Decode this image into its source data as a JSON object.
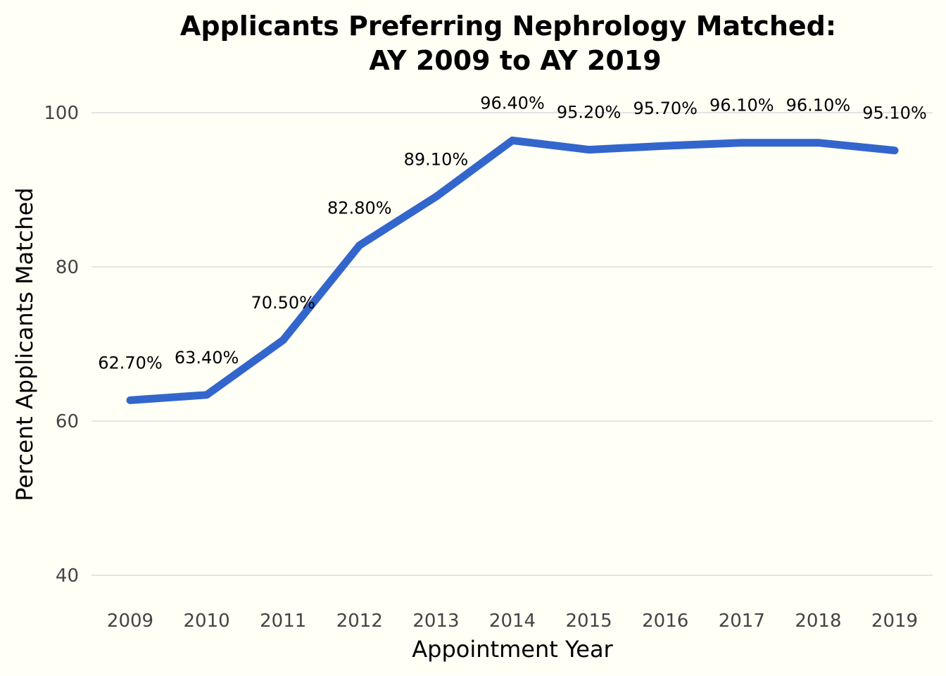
{
  "chart_data": {
    "type": "line",
    "title_lines": [
      "Applicants Preferring Nephrology Matched:",
      "AY 2009 to AY 2019"
    ],
    "xlabel": "Appointment Year",
    "ylabel": "Percent Applicants Matched",
    "categories": [
      "2009",
      "2010",
      "2011",
      "2012",
      "2013",
      "2014",
      "2015",
      "2016",
      "2017",
      "2018",
      "2019"
    ],
    "series": [
      {
        "name": "Percent Matched",
        "values": [
          62.7,
          63.4,
          70.5,
          82.8,
          89.1,
          96.4,
          95.2,
          95.7,
          96.1,
          96.1,
          95.1
        ],
        "labels": [
          "62.70%",
          "63.40%",
          "70.50%",
          "82.80%",
          "89.10%",
          "96.40%",
          "95.20%",
          "95.70%",
          "96.10%",
          "96.10%",
          "95.10%"
        ],
        "color": "#3366cc"
      }
    ],
    "ylim": [
      40,
      100
    ],
    "yticks": [
      "40",
      "60",
      "80",
      "100"
    ],
    "grid": true,
    "legend": "none",
    "background": "#fffff5"
  }
}
